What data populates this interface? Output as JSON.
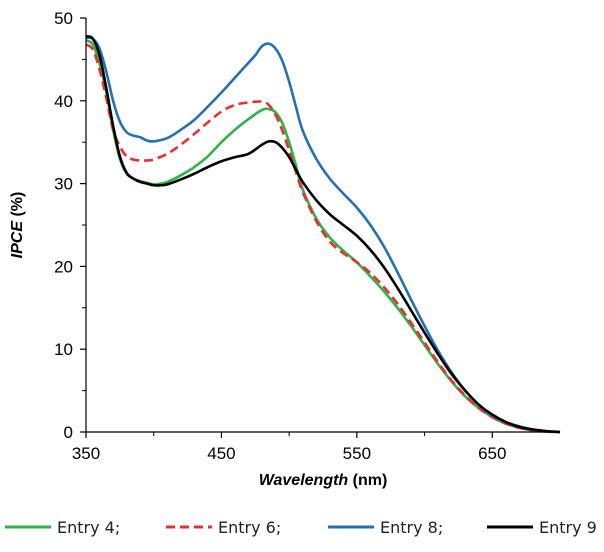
{
  "chart_data": {
    "type": "line",
    "title": "",
    "xlabel": {
      "main": "Wavelength",
      "unit": "(nm)"
    },
    "ylabel": {
      "main": "IPCE",
      "unit": "(%)"
    },
    "xlim": [
      350,
      700
    ],
    "ylim": [
      0,
      50
    ],
    "x_ticks": [
      350,
      450,
      550,
      650
    ],
    "x_tick_labels": [
      "350",
      "450",
      "550",
      "650"
    ],
    "y_ticks": [
      0,
      10,
      20,
      30,
      40,
      50
    ],
    "y_tick_labels": [
      "0",
      "10",
      "20",
      "30",
      "40",
      "50"
    ],
    "grid": false,
    "legend_position": "bottom",
    "series": [
      {
        "name": "Entry 4;",
        "color": "#2db34a",
        "dash": "solid",
        "points": [
          [
            350,
            47.3
          ],
          [
            355,
            46.8
          ],
          [
            360,
            44.5
          ],
          [
            365,
            41
          ],
          [
            370,
            36.5
          ],
          [
            375,
            33
          ],
          [
            380,
            31.2
          ],
          [
            385,
            30.6
          ],
          [
            390,
            30.3
          ],
          [
            395,
            30.1
          ],
          [
            400,
            29.9
          ],
          [
            405,
            30
          ],
          [
            410,
            30.2
          ],
          [
            420,
            31
          ],
          [
            430,
            32
          ],
          [
            440,
            33.3
          ],
          [
            450,
            35
          ],
          [
            460,
            36.5
          ],
          [
            470,
            37.8
          ],
          [
            480,
            38.9
          ],
          [
            485,
            39
          ],
          [
            490,
            38.6
          ],
          [
            495,
            37.3
          ],
          [
            500,
            35
          ],
          [
            505,
            32.2
          ],
          [
            510,
            29.3
          ],
          [
            520,
            25.8
          ],
          [
            530,
            23.5
          ],
          [
            540,
            21.9
          ],
          [
            550,
            20.5
          ],
          [
            560,
            18.8
          ],
          [
            570,
            17
          ],
          [
            580,
            15
          ],
          [
            590,
            12.8
          ],
          [
            600,
            10.5
          ],
          [
            610,
            8.2
          ],
          [
            620,
            6.1
          ],
          [
            630,
            4.3
          ],
          [
            640,
            2.9
          ],
          [
            650,
            1.8
          ],
          [
            660,
            1
          ],
          [
            670,
            0.5
          ],
          [
            680,
            0.2
          ],
          [
            690,
            0.05
          ],
          [
            700,
            0
          ]
        ]
      },
      {
        "name": "Entry 6;",
        "color": "#e8302a",
        "dash": "dashed",
        "points": [
          [
            350,
            46.8
          ],
          [
            355,
            46.2
          ],
          [
            360,
            43.8
          ],
          [
            365,
            40.3
          ],
          [
            370,
            36.5
          ],
          [
            375,
            34.5
          ],
          [
            380,
            33.3
          ],
          [
            385,
            32.9
          ],
          [
            390,
            32.8
          ],
          [
            395,
            32.8
          ],
          [
            400,
            32.9
          ],
          [
            410,
            33.6
          ],
          [
            420,
            34.7
          ],
          [
            430,
            36
          ],
          [
            440,
            37.4
          ],
          [
            450,
            38.7
          ],
          [
            460,
            39.5
          ],
          [
            470,
            39.8
          ],
          [
            480,
            39.9
          ],
          [
            485,
            39.5
          ],
          [
            490,
            38.3
          ],
          [
            495,
            36.4
          ],
          [
            500,
            34
          ],
          [
            505,
            31.4
          ],
          [
            510,
            29
          ],
          [
            520,
            25.5
          ],
          [
            530,
            23
          ],
          [
            540,
            21.6
          ],
          [
            550,
            20.5
          ],
          [
            560,
            19.2
          ],
          [
            570,
            17.5
          ],
          [
            580,
            15.5
          ],
          [
            590,
            13.2
          ],
          [
            600,
            10.8
          ],
          [
            610,
            8.4
          ],
          [
            620,
            6.2
          ],
          [
            630,
            4.4
          ],
          [
            640,
            2.9
          ],
          [
            650,
            1.8
          ],
          [
            660,
            1
          ],
          [
            670,
            0.5
          ],
          [
            680,
            0.2
          ],
          [
            690,
            0.05
          ],
          [
            700,
            0
          ]
        ]
      },
      {
        "name": "Entry 8;",
        "color": "#2470b7",
        "dash": "solid",
        "points": [
          [
            350,
            47.6
          ],
          [
            355,
            47.5
          ],
          [
            360,
            46.3
          ],
          [
            365,
            43.5
          ],
          [
            370,
            40
          ],
          [
            375,
            37.5
          ],
          [
            380,
            36.2
          ],
          [
            385,
            35.8
          ],
          [
            390,
            35.6
          ],
          [
            395,
            35.2
          ],
          [
            400,
            35.1
          ],
          [
            410,
            35.5
          ],
          [
            420,
            36.5
          ],
          [
            430,
            37.7
          ],
          [
            440,
            39.3
          ],
          [
            450,
            41
          ],
          [
            460,
            42.8
          ],
          [
            470,
            44.6
          ],
          [
            475,
            45.5
          ],
          [
            480,
            46.6
          ],
          [
            485,
            46.9
          ],
          [
            490,
            46.3
          ],
          [
            495,
            44.8
          ],
          [
            500,
            42.3
          ],
          [
            505,
            39.3
          ],
          [
            510,
            36.4
          ],
          [
            520,
            33
          ],
          [
            530,
            30.6
          ],
          [
            540,
            28.8
          ],
          [
            550,
            27.1
          ],
          [
            560,
            25
          ],
          [
            570,
            22.4
          ],
          [
            580,
            19.3
          ],
          [
            590,
            16
          ],
          [
            600,
            12.8
          ],
          [
            610,
            9.8
          ],
          [
            620,
            7.2
          ],
          [
            630,
            5
          ],
          [
            640,
            3.3
          ],
          [
            650,
            2
          ],
          [
            660,
            1.2
          ],
          [
            670,
            0.7
          ],
          [
            680,
            0.3
          ],
          [
            690,
            0.1
          ],
          [
            700,
            0
          ]
        ]
      },
      {
        "name": "Entry 9",
        "color": "#000000",
        "dash": "solid",
        "points": [
          [
            350,
            47.8
          ],
          [
            355,
            47.5
          ],
          [
            360,
            45.5
          ],
          [
            365,
            41.5
          ],
          [
            370,
            37
          ],
          [
            375,
            33.3
          ],
          [
            380,
            31.3
          ],
          [
            385,
            30.6
          ],
          [
            390,
            30.2
          ],
          [
            395,
            30
          ],
          [
            400,
            29.8
          ],
          [
            405,
            29.8
          ],
          [
            410,
            29.9
          ],
          [
            420,
            30.5
          ],
          [
            430,
            31.2
          ],
          [
            440,
            32
          ],
          [
            450,
            32.7
          ],
          [
            460,
            33.2
          ],
          [
            470,
            33.6
          ],
          [
            480,
            34.7
          ],
          [
            485,
            35.1
          ],
          [
            490,
            35
          ],
          [
            495,
            34.3
          ],
          [
            500,
            33.2
          ],
          [
            505,
            31.7
          ],
          [
            510,
            30.2
          ],
          [
            520,
            28
          ],
          [
            530,
            26.3
          ],
          [
            540,
            25
          ],
          [
            550,
            23.7
          ],
          [
            560,
            22
          ],
          [
            570,
            19.9
          ],
          [
            580,
            17.4
          ],
          [
            590,
            14.7
          ],
          [
            600,
            12
          ],
          [
            610,
            9.4
          ],
          [
            620,
            7
          ],
          [
            630,
            5
          ],
          [
            640,
            3.3
          ],
          [
            650,
            2.1
          ],
          [
            660,
            1.2
          ],
          [
            670,
            0.6
          ],
          [
            680,
            0.3
          ],
          [
            690,
            0.1
          ],
          [
            700,
            0
          ]
        ]
      }
    ]
  }
}
